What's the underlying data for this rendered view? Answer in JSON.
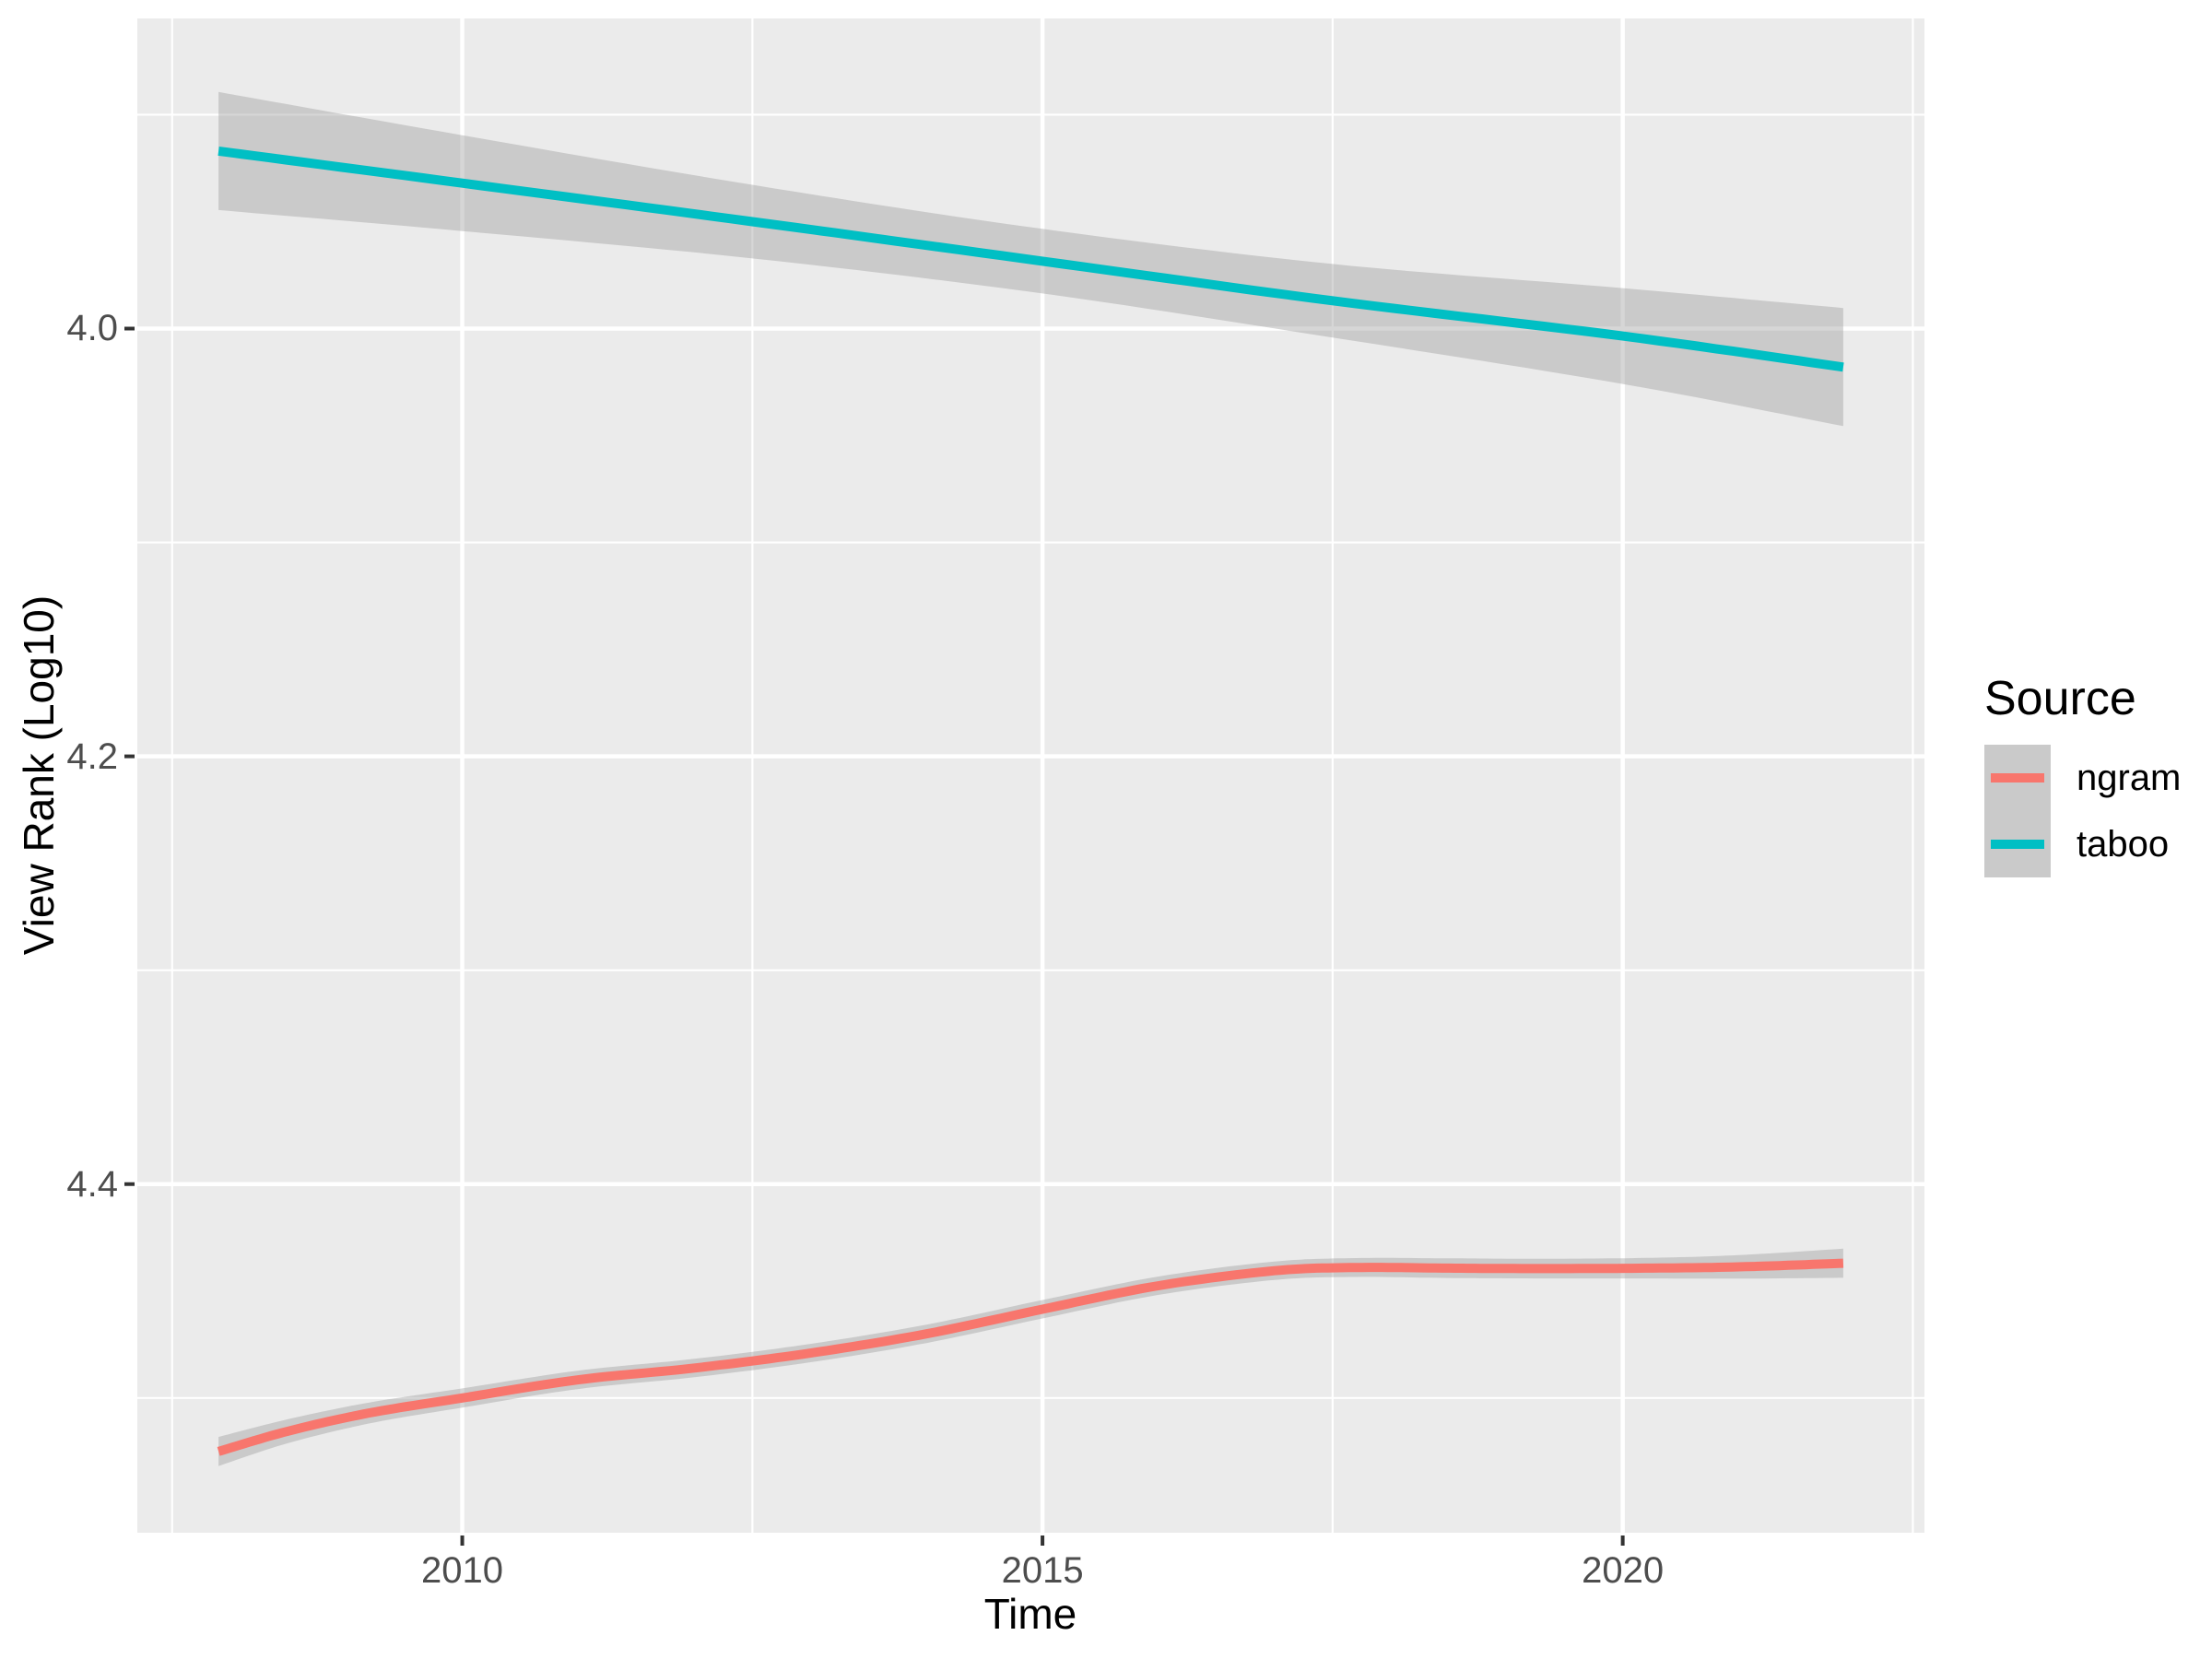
{
  "chart_data": {
    "type": "line",
    "title": "",
    "xlabel": "Time",
    "ylabel": "View Rank (Log10)",
    "x_domain": [
      2007.2,
      2022.6
    ],
    "y_domain": [
      3.855,
      4.563
    ],
    "y_reversed_axis": true,
    "grid": "on",
    "x_ticks": [
      2010,
      2015,
      2020
    ],
    "x_tick_labels": [
      "2010",
      "2015",
      "2020"
    ],
    "x_minor_gridlines": [
      2007.5,
      2012.5,
      2017.5,
      2022.5
    ],
    "y_ticks": [
      4.0,
      4.2,
      4.4
    ],
    "y_tick_labels": [
      "4.0",
      "4.2",
      "4.4"
    ],
    "y_minor_gridlines": [
      3.9,
      4.1,
      4.3,
      4.5
    ],
    "legend": {
      "title": "Source",
      "position": "right",
      "entries": [
        {
          "label": "ngram",
          "color": "#F8766D"
        },
        {
          "label": "taboo",
          "color": "#00BFC4"
        }
      ]
    },
    "series": [
      {
        "name": "ngram",
        "color": "#F8766D",
        "smoother": "loess",
        "x": [
          2007.9,
          2008.5,
          2009.2,
          2010,
          2011,
          2012,
          2013,
          2014,
          2015,
          2016,
          2017,
          2017.7,
          2018.5,
          2019.3,
          2020.2,
          2021,
          2021.9
        ],
        "y": [
          4.525,
          4.5155,
          4.507,
          4.5,
          4.4915,
          4.486,
          4.479,
          4.47,
          4.4585,
          4.4475,
          4.4405,
          4.439,
          4.4393,
          4.4395,
          4.4393,
          4.4387,
          4.437
        ],
        "ci_halfwidth": [
          0.0068,
          0.0056,
          0.0049,
          0.0045,
          0.0043,
          0.0043,
          0.0043,
          0.0043,
          0.0043,
          0.0043,
          0.0043,
          0.0044,
          0.0046,
          0.0046,
          0.0048,
          0.0055,
          0.0068
        ]
      },
      {
        "name": "taboo",
        "color": "#00BFC4",
        "smoother": "lm",
        "x": [
          2007.9,
          2010,
          2012.5,
          2015,
          2017.5,
          2020,
          2021.9
        ],
        "y": [
          3.917,
          3.932,
          3.95,
          3.9685,
          3.987,
          4.0035,
          4.018
        ],
        "ci_halfwidth": [
          0.0276,
          0.0224,
          0.0172,
          0.0151,
          0.0172,
          0.0224,
          0.0276
        ]
      }
    ],
    "colors": {
      "panel_background": "#EBEBEB",
      "gridline": "#FFFFFF",
      "ribbon_fill": "#999999",
      "ribbon_alpha": 0.4,
      "axis_text": "#4D4D4D",
      "axis_title": "#000000",
      "tick_mark": "#333333"
    }
  }
}
